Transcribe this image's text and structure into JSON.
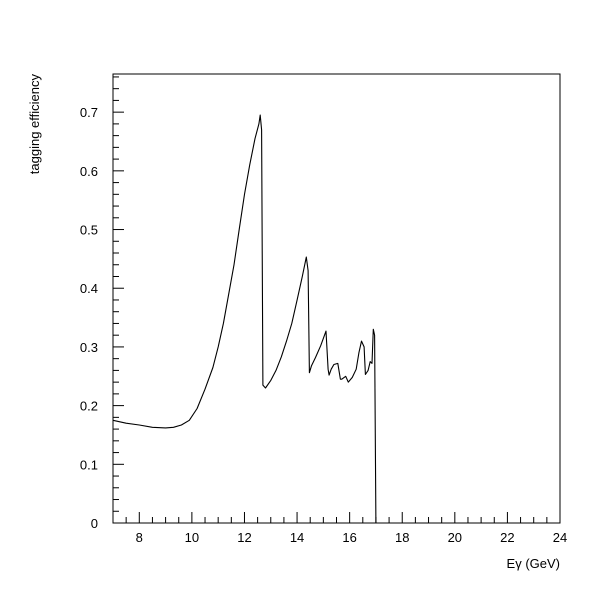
{
  "chart_data": {
    "type": "line",
    "title": "",
    "xlabel": "Eγ (GeV)",
    "ylabel": "tagging efficiency",
    "xlim": [
      7,
      24
    ],
    "ylim": [
      0,
      0.765
    ],
    "x_ticks": [
      8,
      10,
      12,
      14,
      16,
      18,
      20,
      22,
      24
    ],
    "y_ticks": [
      0,
      0.1,
      0.2,
      0.3,
      0.4,
      0.5,
      0.6,
      0.7
    ],
    "x_tick_labels": [
      "8",
      "10",
      "12",
      "14",
      "16",
      "18",
      "20",
      "22",
      "24"
    ],
    "y_tick_labels": [
      "0",
      "0.1",
      "0.2",
      "0.3",
      "0.4",
      "0.5",
      "0.6",
      "0.7"
    ],
    "grid": false,
    "line_color": "#000000",
    "series": [
      {
        "x": [
          7.0,
          7.5,
          8.0,
          8.5,
          9.0,
          9.3,
          9.6,
          9.9,
          10.2,
          10.5,
          10.8,
          11.0,
          11.2,
          11.4,
          11.6,
          11.8,
          12.0,
          12.2,
          12.4,
          12.55,
          12.6,
          12.65,
          12.7,
          12.8,
          13.0,
          13.2,
          13.4,
          13.6,
          13.8,
          14.0,
          14.2,
          14.35,
          14.42,
          14.47,
          14.55,
          14.7,
          14.9,
          15.1,
          15.18,
          15.22,
          15.3,
          15.4,
          15.55,
          15.65,
          15.7,
          15.85,
          15.95,
          16.1,
          16.25,
          16.35,
          16.45,
          16.55,
          16.6,
          16.7,
          16.78,
          16.85,
          16.9,
          16.95,
          17.0,
          17.05,
          17.05
        ],
        "y": [
          0.175,
          0.17,
          0.167,
          0.163,
          0.162,
          0.163,
          0.167,
          0.175,
          0.195,
          0.228,
          0.265,
          0.3,
          0.34,
          0.39,
          0.44,
          0.5,
          0.56,
          0.61,
          0.655,
          0.68,
          0.695,
          0.67,
          0.235,
          0.23,
          0.243,
          0.26,
          0.283,
          0.31,
          0.34,
          0.38,
          0.42,
          0.453,
          0.43,
          0.256,
          0.268,
          0.282,
          0.302,
          0.327,
          0.262,
          0.252,
          0.262,
          0.27,
          0.272,
          0.245,
          0.245,
          0.25,
          0.24,
          0.248,
          0.262,
          0.29,
          0.31,
          0.3,
          0.253,
          0.26,
          0.275,
          0.272,
          0.33,
          0.32,
          0.0,
          0.0,
          0.0
        ]
      }
    ]
  }
}
